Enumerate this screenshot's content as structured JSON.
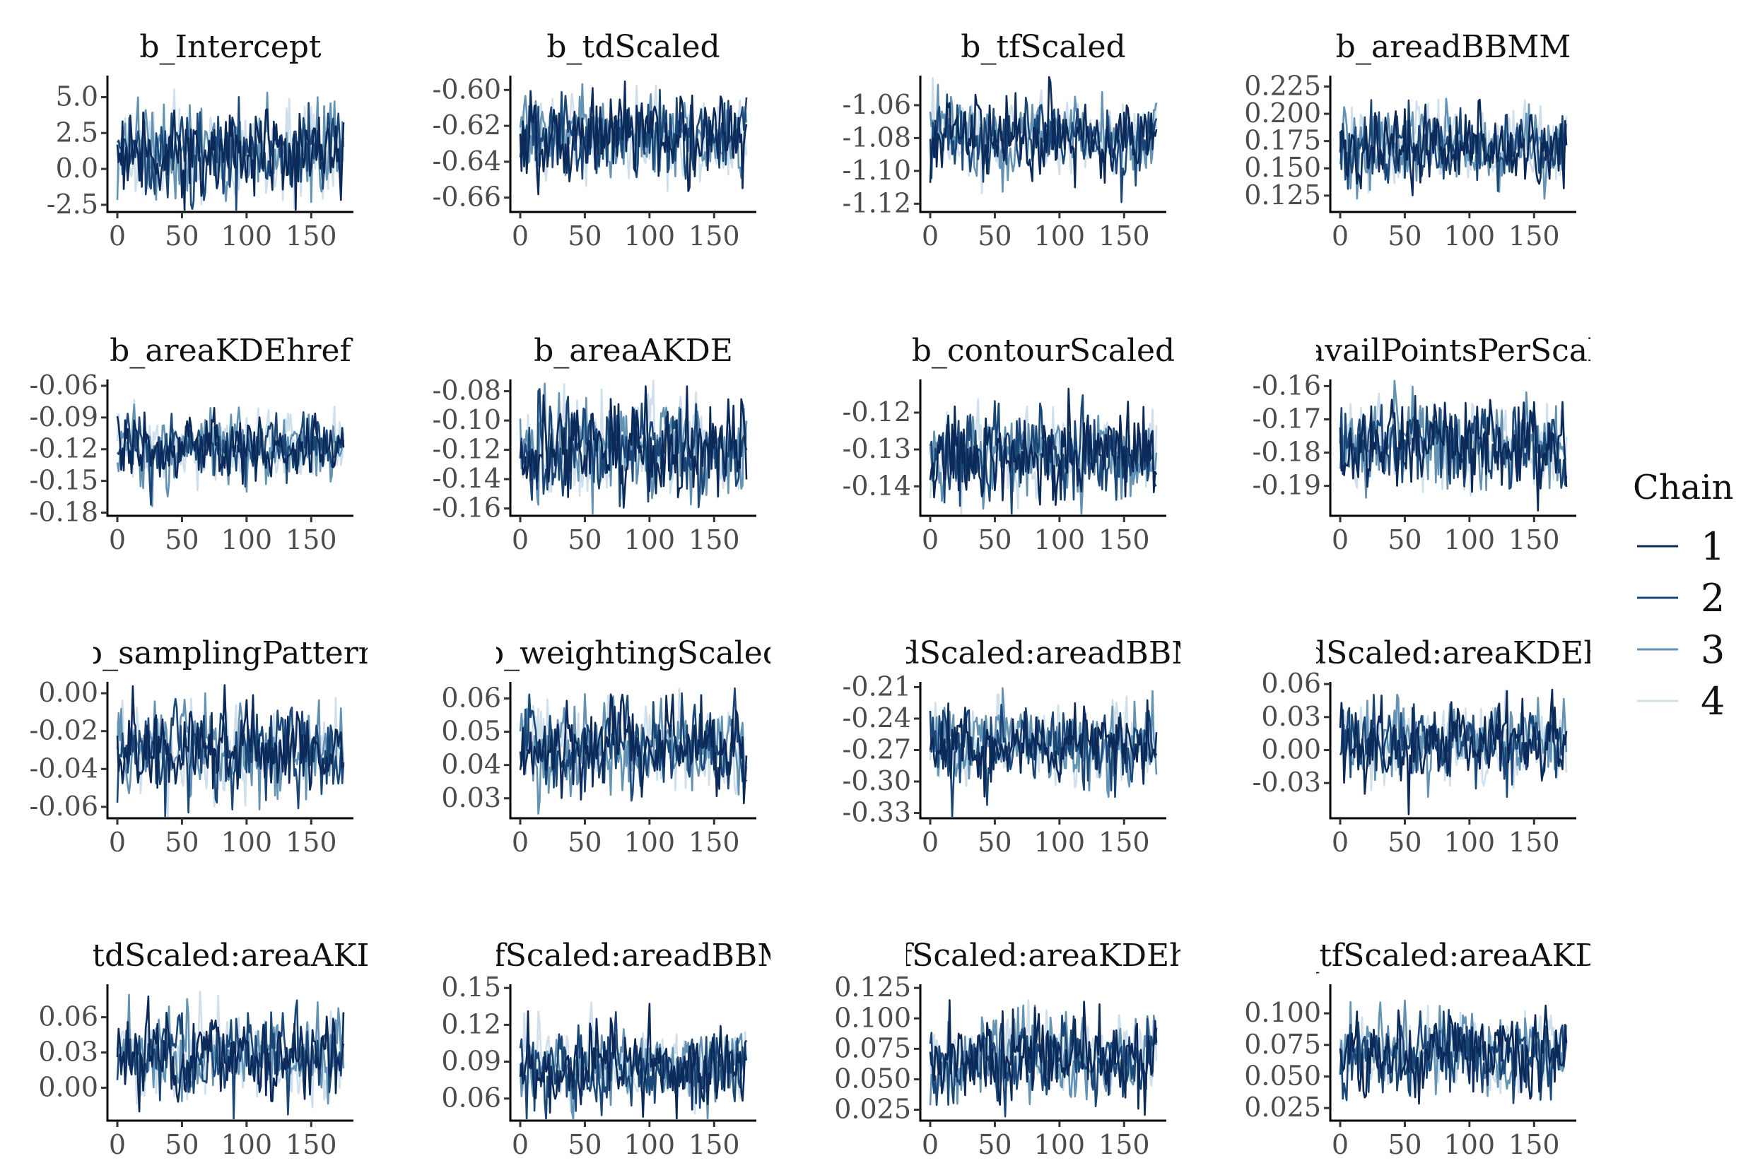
{
  "chart_data": {
    "type": "line",
    "layout": "4x4 facet grid, chain legend on the right",
    "legend": {
      "title": "Chain",
      "placement": "right",
      "entries": [
        {
          "label": "1",
          "color": "#0c2a59"
        },
        {
          "label": "2",
          "color": "#1a4778"
        },
        {
          "label": "3",
          "color": "#6492b3"
        },
        {
          "label": "4",
          "color": "#cfe0ec"
        }
      ]
    },
    "x_ticks": [
      0,
      50,
      100,
      150
    ],
    "xlim": [
      0,
      175
    ],
    "panels": [
      {
        "title": "b_Intercept",
        "ylim": [
          -3,
          6.5
        ],
        "y_ticks": [
          5.0,
          2.5,
          0.0,
          -2.5
        ],
        "y_tick_labels": [
          "5.0",
          "2.5",
          "0.0",
          "-2.5"
        ],
        "center": 1.2,
        "spread": 1.5
      },
      {
        "title": "b_tdScaled",
        "ylim": [
          -0.668,
          -0.592
        ],
        "y_ticks": [
          -0.6,
          -0.62,
          -0.64,
          -0.66
        ],
        "y_tick_labels": [
          "-0.60",
          "-0.62",
          "-0.64",
          "-0.66"
        ],
        "center": -0.626,
        "spread": 0.011
      },
      {
        "title": "b_tfScaled",
        "ylim": [
          -1.125,
          -1.042
        ],
        "y_ticks": [
          -1.06,
          -1.08,
          -1.1,
          -1.12
        ],
        "y_tick_labels": [
          "-1.06",
          "-1.08",
          "-1.10",
          "-1.12"
        ],
        "center": -1.081,
        "spread": 0.011
      },
      {
        "title": "b_areadBBMM",
        "ylim": [
          0.11,
          0.235
        ],
        "y_ticks": [
          0.225,
          0.2,
          0.175,
          0.15,
          0.125
        ],
        "y_tick_labels": [
          "0.225",
          "0.200",
          "0.175",
          "0.150",
          "0.125"
        ],
        "center": 0.17,
        "spread": 0.017
      },
      {
        "title": "b_areaKDEhref",
        "ylim": [
          -0.183,
          -0.054
        ],
        "y_ticks": [
          -0.06,
          -0.09,
          -0.12,
          -0.15,
          -0.18
        ],
        "y_tick_labels": [
          "-0.06",
          "-0.09",
          "-0.12",
          "-0.15",
          "-0.18"
        ],
        "center": -0.118,
        "spread": 0.016
      },
      {
        "title": "b_areaAKDE",
        "ylim": [
          -0.165,
          -0.072
        ],
        "y_ticks": [
          -0.08,
          -0.1,
          -0.12,
          -0.14,
          -0.16
        ],
        "y_tick_labels": [
          "-0.08",
          "-0.10",
          "-0.12",
          "-0.14",
          "-0.16"
        ],
        "center": -0.118,
        "spread": 0.017
      },
      {
        "title": "b_contourScaled",
        "ylim": [
          -0.148,
          -0.111
        ],
        "y_ticks": [
          -0.12,
          -0.13,
          -0.14
        ],
        "y_tick_labels": [
          "-0.12",
          "-0.13",
          "-0.14"
        ],
        "center": -0.131,
        "spread": 0.0055
      },
      {
        "title": "b_availPointsPerScaled",
        "ylim": [
          -0.199,
          -0.158
        ],
        "y_ticks": [
          -0.16,
          -0.17,
          -0.18,
          -0.19
        ],
        "y_tick_labels": [
          "-0.16",
          "-0.17",
          "-0.18",
          "-0.19"
        ],
        "center": -0.178,
        "spread": 0.0065
      },
      {
        "title": "b_samplingPattern",
        "ylim": [
          -0.066,
          0.006
        ],
        "y_ticks": [
          0.0,
          -0.02,
          -0.04,
          -0.06
        ],
        "y_tick_labels": [
          "0.00",
          "-0.02",
          "-0.04",
          "-0.06"
        ],
        "center": -0.031,
        "spread": 0.011
      },
      {
        "title": "b_weightingScaled",
        "ylim": [
          0.024,
          0.065
        ],
        "y_ticks": [
          0.06,
          0.05,
          0.04,
          0.03
        ],
        "y_tick_labels": [
          "0.06",
          "0.05",
          "0.04",
          "0.03"
        ],
        "center": 0.045,
        "spread": 0.0065
      },
      {
        "title": "b_tdScaled:areadBBMM",
        "ylim": [
          -0.335,
          -0.205
        ],
        "y_ticks": [
          -0.21,
          -0.24,
          -0.27,
          -0.3,
          -0.33
        ],
        "y_tick_labels": [
          "-0.21",
          "-0.24",
          "-0.27",
          "-0.30",
          "-0.33"
        ],
        "center": -0.265,
        "spread": 0.018
      },
      {
        "title": "b_tdScaled:areaKDEhref",
        "ylim": [
          -0.062,
          0.062
        ],
        "y_ticks": [
          0.06,
          0.03,
          0.0,
          -0.03
        ],
        "y_tick_labels": [
          "0.06",
          "0.03",
          "0.00",
          "-0.03"
        ],
        "center": 0.005,
        "spread": 0.017
      },
      {
        "title": "b_tdScaled:areaAKDE",
        "ylim": [
          -0.028,
          0.088
        ],
        "y_ticks": [
          0.06,
          0.03,
          0.0
        ],
        "y_tick_labels": [
          "0.06",
          "0.03",
          "0.00"
        ],
        "center": 0.028,
        "spread": 0.017
      },
      {
        "title": "b_tfScaled:areadBBMM",
        "ylim": [
          0.042,
          0.153
        ],
        "y_ticks": [
          0.15,
          0.12,
          0.09,
          0.06
        ],
        "y_tick_labels": [
          "0.15",
          "0.12",
          "0.09",
          "0.06"
        ],
        "center": 0.087,
        "spread": 0.015
      },
      {
        "title": "b_tfScaled:areaKDEhref",
        "ylim": [
          0.016,
          0.128
        ],
        "y_ticks": [
          0.125,
          0.1,
          0.075,
          0.05,
          0.025
        ],
        "y_tick_labels": [
          "0.125",
          "0.100",
          "0.075",
          "0.050",
          "0.025"
        ],
        "center": 0.068,
        "spread": 0.016
      },
      {
        "title": "b_tfScaled:areaAKDE",
        "ylim": [
          0.015,
          0.123
        ],
        "y_ticks": [
          0.1,
          0.075,
          0.05,
          0.025
        ],
        "y_tick_labels": [
          "0.100",
          "0.075",
          "0.050",
          "0.025"
        ],
        "center": 0.068,
        "spread": 0.016
      }
    ]
  }
}
